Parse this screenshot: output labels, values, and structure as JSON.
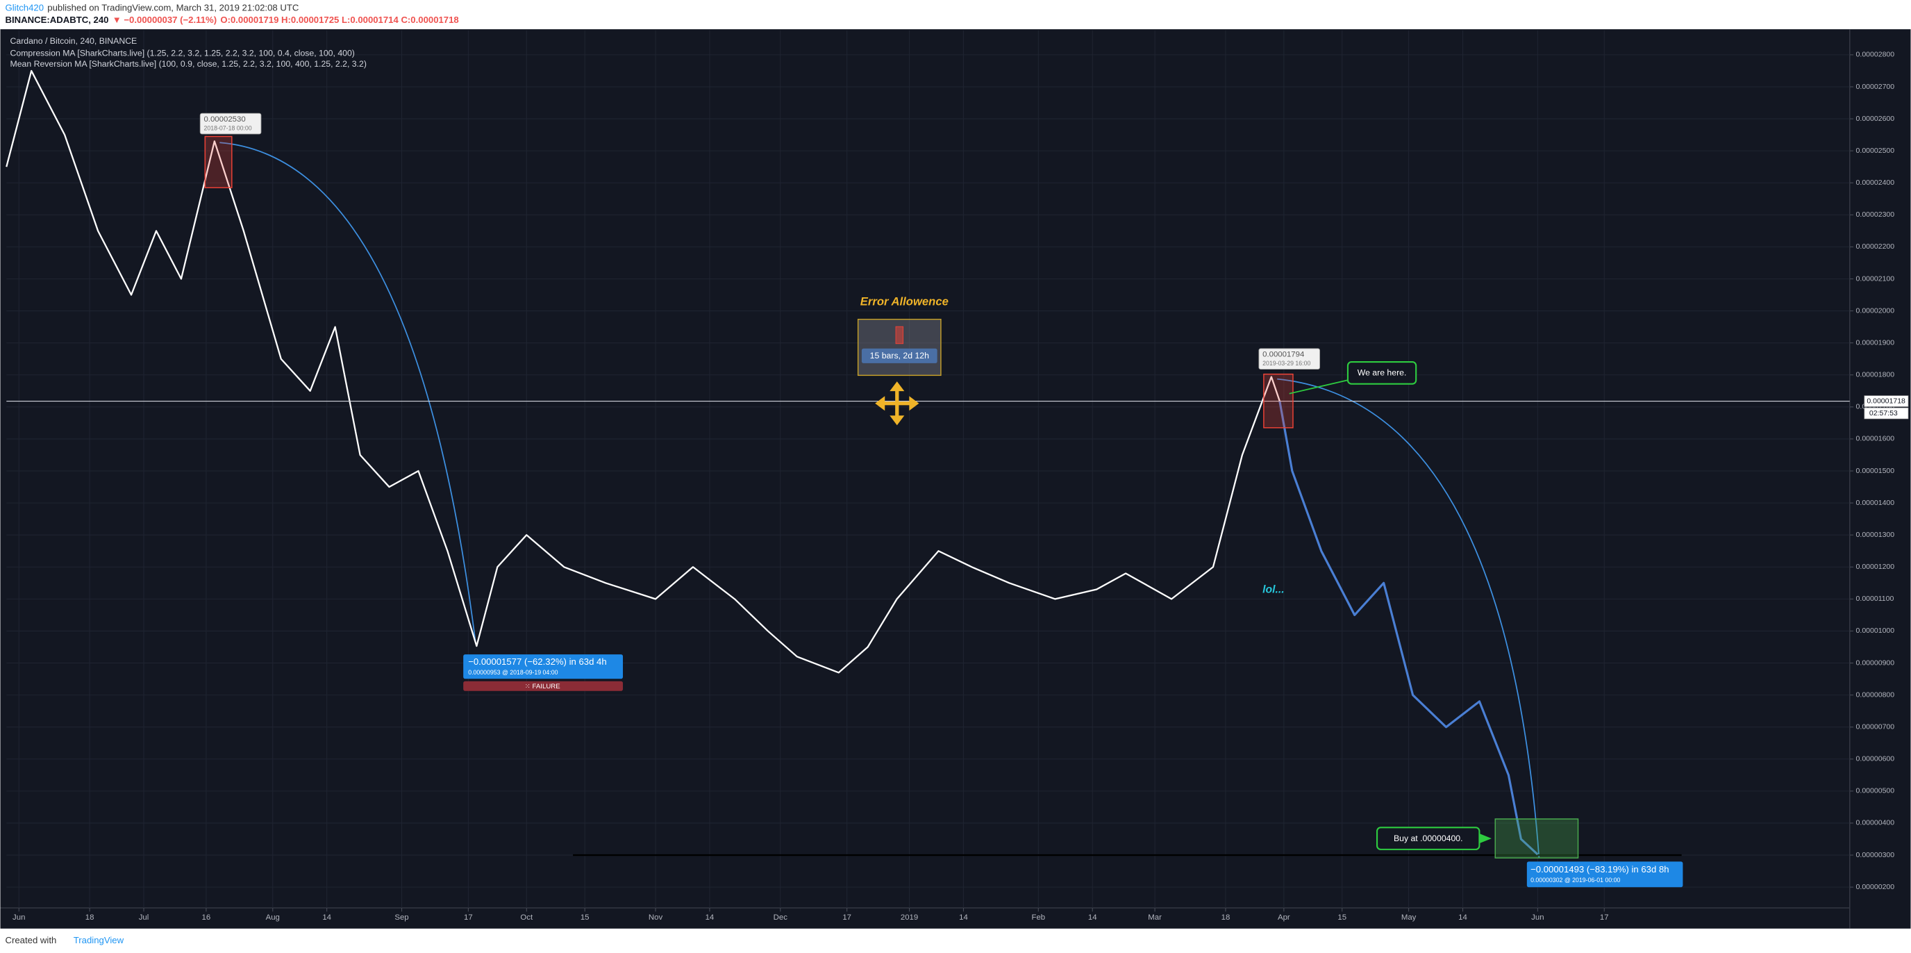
{
  "header": {
    "author": "Glitch420",
    "published": "published on TradingView.com, March 31, 2019 21:02:08 UTC",
    "symbol": "BINANCE:ADABTC, 240",
    "change": "▼ −0.00000037 (−2.11%)",
    "ohlc": "O:0.00001719 H:0.00001725 L:0.00001714 C:0.00001718"
  },
  "footer": {
    "created_with": "Created with",
    "brand": "TradingView"
  },
  "chart_data": {
    "type": "line",
    "title": "Cardano / Bitcoin, 240, BINANCE",
    "indicators": [
      "Compression MA [SharkCharts.live] (1.25, 2.2, 3.2, 1.25, 2.2, 3.2, 100, 0.4, close, 100, 400)",
      "Mean Reversion MA [SharkCharts.live] (100, 0.9, close, 1.25, 2.2, 3.2, 100, 400, 1.25, 2.2, 3.2)"
    ],
    "x": [
      "2018-05-29",
      "2018-06-04",
      "2018-06-12",
      "2018-06-20",
      "2018-06-28",
      "2018-07-04",
      "2018-07-10",
      "2018-07-18",
      "2018-07-25",
      "2018-08-03",
      "2018-08-10",
      "2018-08-16",
      "2018-08-22",
      "2018-08-29",
      "2018-09-05",
      "2018-09-12",
      "2018-09-19",
      "2018-09-24",
      "2018-10-01",
      "2018-10-10",
      "2018-10-20",
      "2018-11-01",
      "2018-11-10",
      "2018-11-20",
      "2018-11-28",
      "2018-12-05",
      "2018-12-15",
      "2018-12-22",
      "2018-12-29",
      "2019-01-08",
      "2019-01-16",
      "2019-01-25",
      "2019-02-05",
      "2019-02-15",
      "2019-02-22",
      "2019-03-05",
      "2019-03-15",
      "2019-03-22",
      "2019-03-29",
      "2019-03-31",
      "2019-04-03",
      "2019-04-10",
      "2019-04-18",
      "2019-04-25",
      "2019-05-02",
      "2019-05-10",
      "2019-05-18",
      "2019-05-25",
      "2019-05-28",
      "2019-06-01"
    ],
    "series": [
      {
        "color": "#ffffff",
        "values": [
          2.45e-05,
          2.75e-05,
          2.55e-05,
          2.25e-05,
          2.05e-05,
          2.25e-05,
          2.1e-05,
          2.53e-05,
          2.25e-05,
          1.85e-05,
          1.75e-05,
          1.95e-05,
          1.55e-05,
          1.45e-05,
          1.5e-05,
          1.25e-05,
          9.53e-06,
          1.2e-05,
          1.3e-05,
          1.2e-05,
          1.15e-05,
          1.1e-05,
          1.2e-05,
          1.1e-05,
          1e-05,
          9.2e-06,
          8.7e-06,
          9.5e-06,
          1.1e-05,
          1.25e-05,
          1.2e-05,
          1.15e-05,
          1.1e-05,
          1.13e-05,
          1.18e-05,
          1.1e-05,
          1.2e-05,
          1.55e-05,
          1.794e-05,
          1.718e-05,
          null,
          null,
          null,
          null,
          null,
          null,
          null,
          null,
          null,
          null
        ]
      },
      {
        "color": "#4a7fd4",
        "values": [
          null,
          null,
          null,
          null,
          null,
          null,
          null,
          null,
          null,
          null,
          null,
          null,
          null,
          null,
          null,
          null,
          null,
          null,
          null,
          null,
          null,
          null,
          null,
          null,
          null,
          null,
          null,
          null,
          null,
          null,
          null,
          null,
          null,
          null,
          null,
          null,
          null,
          null,
          null,
          1.718e-05,
          1.5e-05,
          1.25e-05,
          1.05e-05,
          1.15e-05,
          8e-06,
          7e-06,
          7.8e-06,
          5.5e-06,
          3.5e-06,
          3.02e-06
        ]
      }
    ],
    "xlim": [
      "2018-05-29",
      "2019-08-15"
    ],
    "ylim": [
      1.35e-06,
      2.876e-05
    ],
    "xticks": [
      {
        "value": "2018-06-01",
        "label": "Jun"
      },
      {
        "value": "2018-06-18",
        "label": "18"
      },
      {
        "value": "2018-07-01",
        "label": "Jul"
      },
      {
        "value": "2018-07-16",
        "label": "16"
      },
      {
        "value": "2018-08-01",
        "label": "Aug"
      },
      {
        "value": "2018-08-14",
        "label": "14"
      },
      {
        "value": "2018-09-01",
        "label": "Sep"
      },
      {
        "value": "2018-09-17",
        "label": "17"
      },
      {
        "value": "2018-10-01",
        "label": "Oct"
      },
      {
        "value": "2018-10-15",
        "label": "15"
      },
      {
        "value": "2018-11-01",
        "label": "Nov"
      },
      {
        "value": "2018-11-14",
        "label": "14"
      },
      {
        "value": "2018-12-01",
        "label": "Dec"
      },
      {
        "value": "2018-12-17",
        "label": "17"
      },
      {
        "value": "2019-01-01",
        "label": "2019"
      },
      {
        "value": "2019-01-14",
        "label": "14"
      },
      {
        "value": "2019-02-01",
        "label": "Feb"
      },
      {
        "value": "2019-02-14",
        "label": "14"
      },
      {
        "value": "2019-03-01",
        "label": "Mar"
      },
      {
        "value": "2019-03-18",
        "label": "18"
      },
      {
        "value": "2019-04-01",
        "label": "Apr"
      },
      {
        "value": "2019-04-15",
        "label": "15"
      },
      {
        "value": "2019-05-01",
        "label": "May"
      },
      {
        "value": "2019-05-14",
        "label": "14"
      },
      {
        "value": "2019-06-01",
        "label": "Jun"
      },
      {
        "value": "2019-06-17",
        "label": "17"
      }
    ],
    "yticks": [
      {
        "value": 2e-06,
        "label": "0.00000200"
      },
      {
        "value": 3e-06,
        "label": "0.00000300"
      },
      {
        "value": 4e-06,
        "label": "0.00000400"
      },
      {
        "value": 5e-06,
        "label": "0.00000500"
      },
      {
        "value": 6e-06,
        "label": "0.00000600"
      },
      {
        "value": 7e-06,
        "label": "0.00000700"
      },
      {
        "value": 8e-06,
        "label": "0.00000800"
      },
      {
        "value": 9e-06,
        "label": "0.00000900"
      },
      {
        "value": 1e-05,
        "label": "0.00001000"
      },
      {
        "value": 1.1e-05,
        "label": "0.00001100"
      },
      {
        "value": 1.2e-05,
        "label": "0.00001200"
      },
      {
        "value": 1.3e-05,
        "label": "0.00001300"
      },
      {
        "value": 1.4e-05,
        "label": "0.00001400"
      },
      {
        "value": 1.5e-05,
        "label": "0.00001500"
      },
      {
        "value": 1.6e-05,
        "label": "0.00001600"
      },
      {
        "value": 1.7e-05,
        "label": "0.00001700"
      },
      {
        "value": 1.8e-05,
        "label": "0.00001800"
      },
      {
        "value": 1.9e-05,
        "label": "0.00001900"
      },
      {
        "value": 2e-05,
        "label": "0.00002000"
      },
      {
        "value": 2.1e-05,
        "label": "0.00002100"
      },
      {
        "value": 2.2e-05,
        "label": "0.00002200"
      },
      {
        "value": 2.3e-05,
        "label": "0.00002300"
      },
      {
        "value": 2.4e-05,
        "label": "0.00002400"
      },
      {
        "value": 2.5e-05,
        "label": "0.00002500"
      },
      {
        "value": 2.6e-05,
        "label": "0.00002600"
      },
      {
        "value": 2.7e-05,
        "label": "0.00002700"
      },
      {
        "value": 2.8e-05,
        "label": "0.00002800"
      }
    ],
    "grid": true,
    "last_price": {
      "value": 1.718e-05,
      "label": "0.00001718"
    },
    "countdown": "02:57:53",
    "support_level": 3e-06,
    "annotations": {
      "peak_1_price": "0.00002530",
      "peak_1_date": "2018-07-18 00:00",
      "measure_1": "−0.00001577 (−62.32%) in 63d 4h",
      "measure_1_detail": "0.00000953  @ 2018-09-19  04:00",
      "failure": "⁙ FAILURE",
      "error_title": "Error Allowence",
      "error_range": "15 bars, 2d 12h",
      "peak_2_price": "0.00001794",
      "peak_2_date": "2019-03-29 16:00",
      "we_are_here": "We are here.",
      "lol": "lol...",
      "buy": "Buy at .00000400.",
      "measure_2": "−0.00001493 (−83.19%) in 63d 8h",
      "measure_2_detail": "0.00000302  @ 2019-06-01  00:00"
    }
  }
}
